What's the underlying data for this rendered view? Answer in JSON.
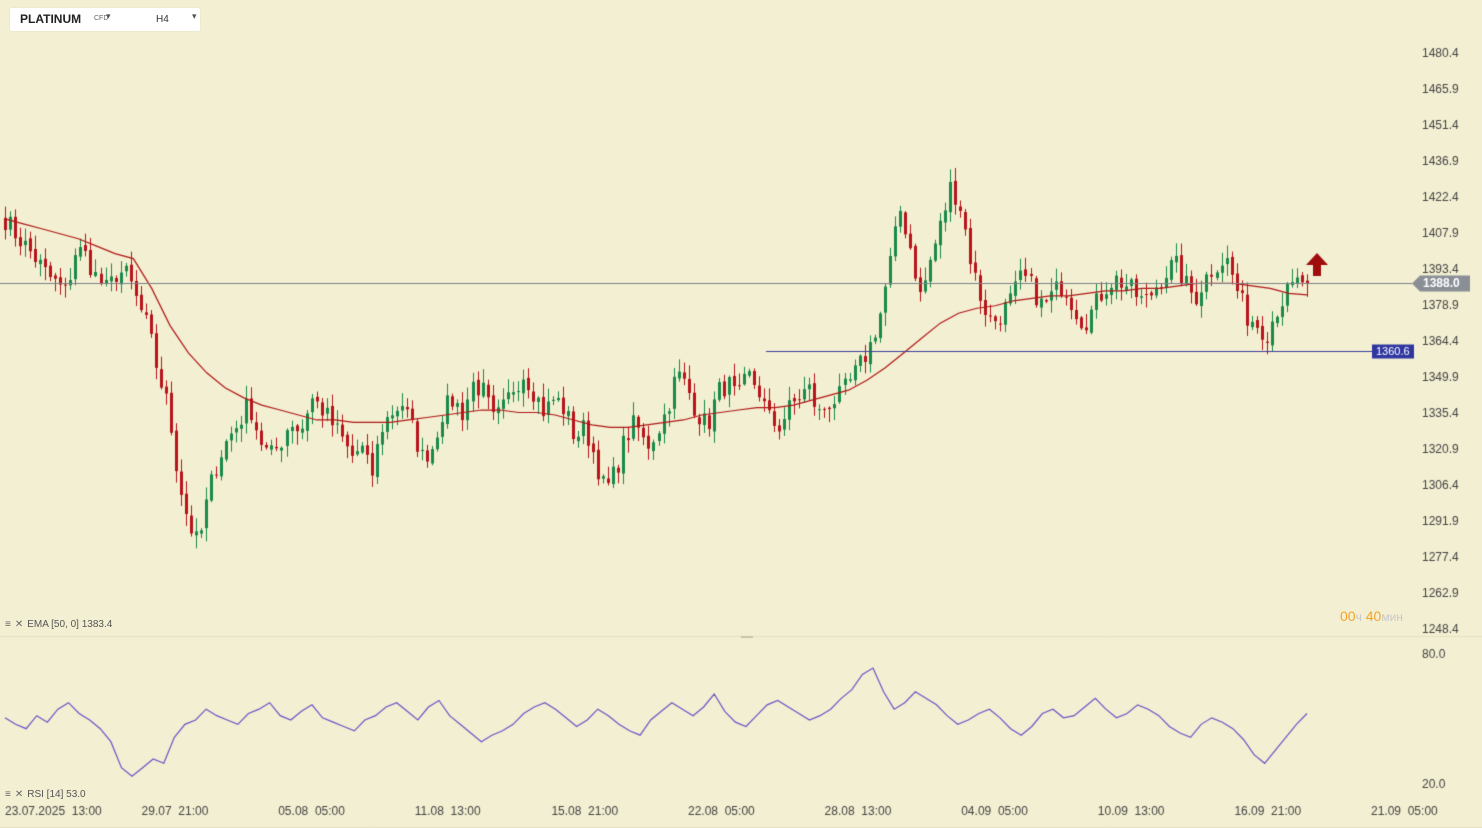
{
  "header": {
    "symbol": "PLATINUM",
    "symbol_type": "CFD",
    "timeframe": "H4"
  },
  "indicators": {
    "ema_label": "EMA [50, 0] 1383.4",
    "rsi_label": "RSI [14] 53.0"
  },
  "timer": {
    "hours": "00",
    "hours_unit": "ч",
    "minutes": "40",
    "minutes_unit": "мин"
  },
  "colors": {
    "background": "#f3efd2",
    "up": "#1a8a4a",
    "down": "#b8141a",
    "ema": "#b01818",
    "rsi": "#6f52c8",
    "hline": "#3a40a0",
    "price_badge": "#8a8f96",
    "arrow": "#a00d0d"
  },
  "chart_data": {
    "type": "candlestick",
    "price_ylim": [
      1248.4,
      1480.4
    ],
    "y_ticks": [
      "1480.4",
      "1465.9",
      "1451.4",
      "1436.9",
      "1422.4",
      "1407.9",
      "1393.4",
      "1378.9",
      "1364.4",
      "1349.9",
      "1335.4",
      "1320.9",
      "1306.4",
      "1291.9",
      "1277.4",
      "1262.9",
      "1248.4"
    ],
    "x_ticks": [
      "23.07.2025  13:00",
      "29.07  21:00",
      "05.08  05:00",
      "11.08  13:00",
      "15.08  21:00",
      "22.08  05:00",
      "28.08  13:00",
      "04.09  05:00",
      "10.09  13:00",
      "16.09  21:00",
      "21.09  05:00"
    ],
    "current_price": 1388.0,
    "current_price_label": "1388.0",
    "support_level": 1360.6,
    "support_label": "1360.6",
    "rsi_ticks": [
      "80.0",
      "20.0"
    ],
    "rsi_ylim": [
      20,
      80
    ],
    "anchors": [
      1414,
      1408,
      1403,
      1398,
      1392,
      1388,
      1384,
      1402,
      1399,
      1390,
      1385,
      1393,
      1391,
      1380,
      1370,
      1352,
      1338,
      1310,
      1292,
      1282,
      1304,
      1318,
      1326,
      1332,
      1340,
      1326,
      1318,
      1323,
      1333,
      1328,
      1342,
      1338,
      1332,
      1326,
      1318,
      1322,
      1310,
      1330,
      1336,
      1340,
      1330,
      1318,
      1322,
      1336,
      1341,
      1336,
      1348,
      1344,
      1332,
      1338,
      1347,
      1352,
      1344,
      1336,
      1342,
      1337,
      1326,
      1330,
      1318,
      1304,
      1312,
      1326,
      1332,
      1322,
      1328,
      1337,
      1352,
      1346,
      1336,
      1330,
      1344,
      1348,
      1341,
      1351,
      1346,
      1334,
      1330,
      1337,
      1342,
      1346,
      1335,
      1340,
      1342,
      1348,
      1355,
      1363,
      1376,
      1397,
      1418,
      1402,
      1382,
      1398,
      1412,
      1428,
      1418,
      1396,
      1381,
      1372,
      1376,
      1382,
      1391,
      1386,
      1378,
      1384,
      1388,
      1379,
      1372,
      1378,
      1386,
      1390,
      1388,
      1384,
      1380,
      1386,
      1392,
      1396,
      1388,
      1382,
      1390,
      1396,
      1398,
      1386,
      1375,
      1372,
      1368,
      1378,
      1384,
      1388,
      1390
    ],
    "ema": [
      1414,
      1412,
      1410,
      1408,
      1406,
      1403,
      1400,
      1398,
      1386,
      1371,
      1360,
      1352,
      1346,
      1342,
      1339,
      1337,
      1335,
      1333,
      1333,
      1332,
      1332,
      1332,
      1333,
      1334,
      1335,
      1336,
      1337,
      1337,
      1336,
      1336,
      1335,
      1333,
      1331,
      1330,
      1330,
      1331,
      1332,
      1333,
      1335,
      1336,
      1337,
      1338,
      1338,
      1339,
      1341,
      1343,
      1345,
      1349,
      1354,
      1360,
      1366,
      1372,
      1376,
      1378,
      1379,
      1381,
      1382,
      1383,
      1383,
      1384,
      1385,
      1385,
      1386,
      1386,
      1387,
      1388,
      1388,
      1388,
      1387,
      1386,
      1384,
      1383.4
    ],
    "rsi": [
      51,
      48,
      46,
      52,
      49,
      55,
      58,
      53,
      50,
      46,
      40,
      28,
      24,
      28,
      32,
      30,
      42,
      48,
      50,
      55,
      52,
      50,
      48,
      53,
      55,
      58,
      52,
      50,
      54,
      57,
      51,
      49,
      47,
      45,
      50,
      52,
      56,
      58,
      54,
      50,
      56,
      59,
      52,
      48,
      44,
      40,
      43,
      45,
      48,
      53,
      56,
      58,
      55,
      51,
      47,
      50,
      55,
      52,
      48,
      45,
      43,
      50,
      54,
      58,
      55,
      52,
      56,
      62,
      54,
      49,
      47,
      52,
      57,
      59,
      56,
      53,
      50,
      52,
      55,
      60,
      64,
      71,
      74,
      63,
      55,
      58,
      63,
      60,
      57,
      52,
      48,
      50,
      53,
      55,
      51,
      46,
      43,
      47,
      53,
      55,
      51,
      52,
      56,
      60,
      55,
      51,
      53,
      57,
      55,
      52,
      47,
      44,
      42,
      48,
      51,
      49,
      46,
      41,
      34,
      30,
      36,
      42,
      48,
      53
    ]
  }
}
